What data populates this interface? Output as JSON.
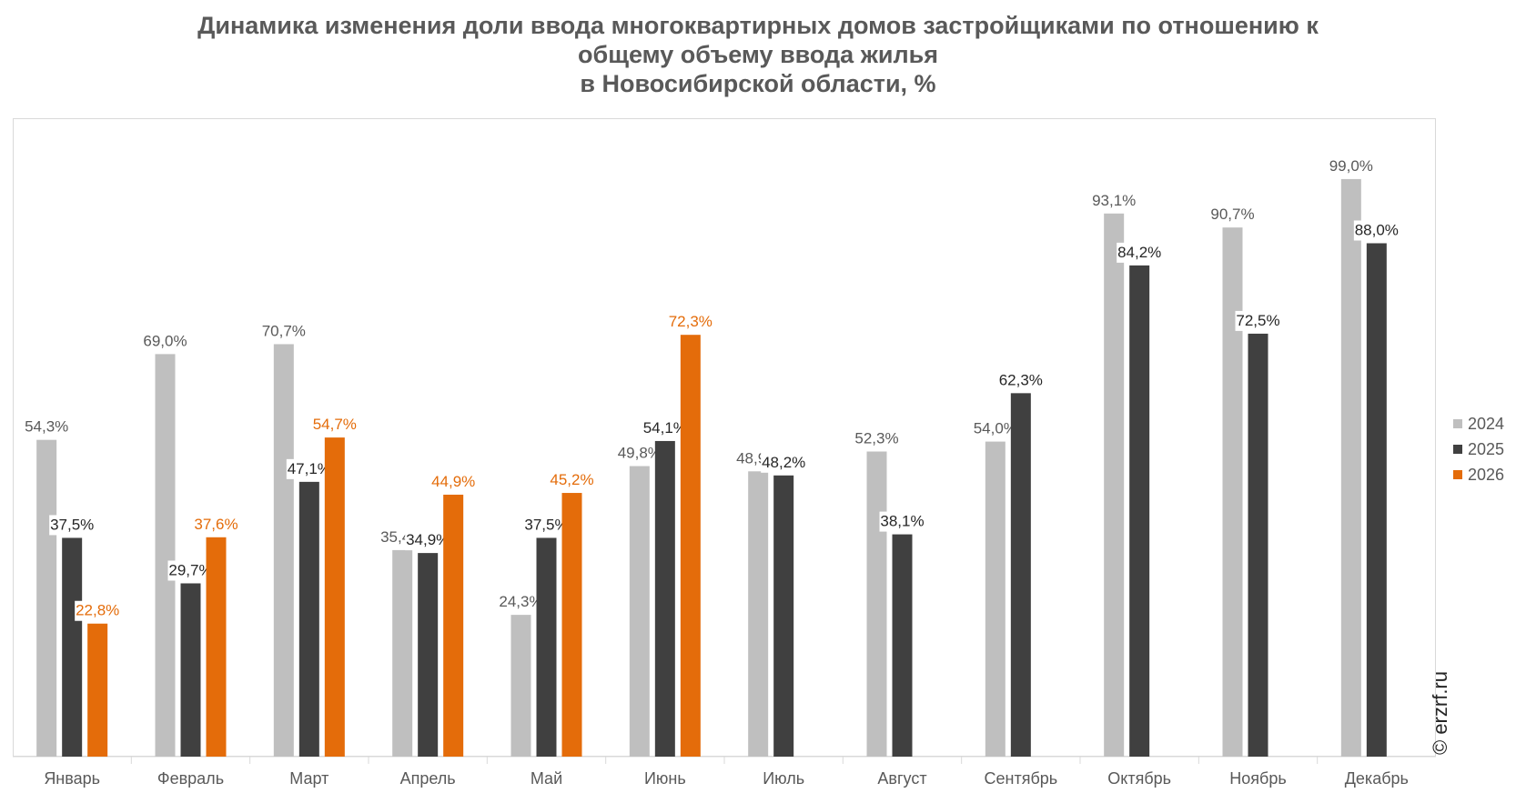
{
  "chart_data": {
    "type": "bar",
    "title_lines": [
      "Динамика изменения доли ввода многоквартирных домов застройщиками по отношению к",
      "общему объему ввода жилья",
      "в Новосибирской области, %"
    ],
    "xlabel": "",
    "ylabel": "",
    "ylim": [
      0,
      100
    ],
    "grid": false,
    "legend_position": "right",
    "categories": [
      "Январь",
      "Февраль",
      "Март",
      "Апрель",
      "Май",
      "Июнь",
      "Июль",
      "Август",
      "Сентябрь",
      "Октябрь",
      "Ноябрь",
      "Декабрь"
    ],
    "series": [
      {
        "name": "2024",
        "color": "#bfbfbf",
        "label_color": "#595959",
        "values": [
          54.3,
          69.0,
          70.7,
          35.4,
          24.3,
          49.8,
          48.9,
          52.3,
          54.0,
          93.1,
          90.7,
          99.0
        ],
        "labels": [
          "54,3%",
          "69,0%",
          "70,7%",
          "35,4%",
          "24,3%",
          "49,8%",
          "48,9%",
          "52,3%",
          "54,0%",
          "93,1%",
          "90,7%",
          "99,0%"
        ]
      },
      {
        "name": "2025",
        "color": "#404040",
        "label_color": "#262626",
        "values": [
          37.5,
          29.7,
          47.1,
          34.9,
          37.5,
          54.1,
          48.2,
          38.1,
          62.3,
          84.2,
          72.5,
          88.0
        ],
        "labels": [
          "37,5%",
          "29,7%",
          "47,1%",
          "34,9%",
          "37,5%",
          "54,1%",
          "48,2%",
          "38,1%",
          "62,3%",
          "84,2%",
          "72,5%",
          "88,0%"
        ]
      },
      {
        "name": "2026",
        "color": "#e46c0a",
        "label_color": "#e46c0a",
        "values": [
          22.8,
          37.6,
          54.7,
          44.9,
          45.2,
          72.3,
          null,
          null,
          null,
          null,
          null,
          null
        ],
        "labels": [
          "22,8%",
          "37,6%",
          "54,7%",
          "44,9%",
          "45,2%",
          "72,3%",
          null,
          null,
          null,
          null,
          null,
          null
        ]
      }
    ]
  },
  "watermark": "© erzrf.ru"
}
